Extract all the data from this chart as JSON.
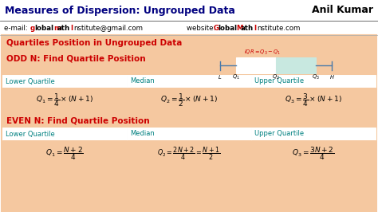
{
  "title_left": "Measures of Dispersion: Ungrouped Data",
  "title_right": "Anil Kumar",
  "section_title": "Quartiles Position in Ungrouped Data",
  "odd_title": "ODD N: Find Quartile Position",
  "even_title": "EVEN N: Find Quartile Position",
  "col_labels": [
    "Lower Quartile",
    "Median",
    "Upper Quartile"
  ],
  "bg_color": "#f5c8a0",
  "white": "#ffffff",
  "border_color": "#3aaa5a",
  "red_color": "#cc0000",
  "teal_color": "#008080",
  "box_left_color": "#ffffff",
  "box_right_color": "#c8e8e0",
  "box_border": "#4a7aaa",
  "title_color": "#000080",
  "figw": 4.74,
  "figh": 2.66,
  "dpi": 100
}
